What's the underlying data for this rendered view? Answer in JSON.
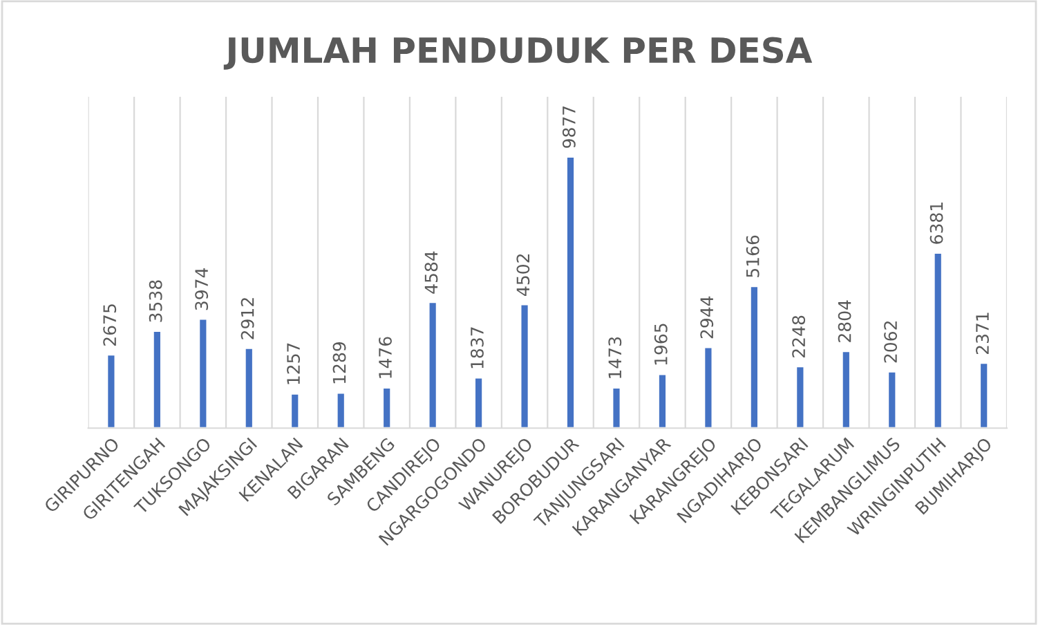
{
  "chart_data": {
    "type": "bar",
    "title": "JUMLAH PENDUDUK PER DESA",
    "categories": [
      "GIRIPURNO",
      "GIRITENGAH",
      "TUKSONGO",
      "MAJAKSINGI",
      "KENALAN",
      "BIGARAN",
      "SAMBENG",
      "CANDIREJO",
      "NGARGOGONDO",
      "WANUREJO",
      "BOROBUDUR",
      "TANJUNGSARI",
      "KARANGANYAR",
      "KARANGREJO",
      "NGADIHARJO",
      "KEBONSARI",
      "TEGALARUM",
      "KEMBANGLIMUS",
      "WRINGINPUTIH",
      "BUMIHARJO"
    ],
    "values": [
      2675,
      3538,
      3974,
      2912,
      1257,
      1289,
      1476,
      4584,
      1837,
      4502,
      9877,
      1473,
      1965,
      2944,
      5166,
      2248,
      2804,
      2062,
      6381,
      2371
    ],
    "color": "#4472c4",
    "data_labels": true,
    "grid": "x",
    "tick_labels": "x"
  }
}
